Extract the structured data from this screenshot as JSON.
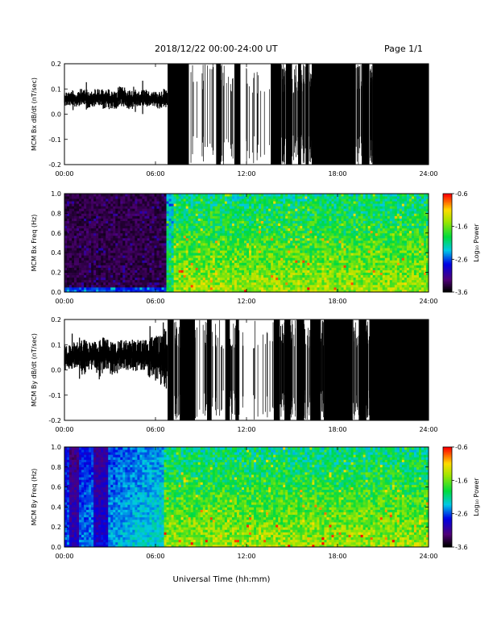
{
  "header": {
    "title": "2018/12/22  00:00-24:00 UT",
    "page": "Page 1/1"
  },
  "x_axis": {
    "label": "Universal Time (hh:mm)",
    "ticks": [
      "00:00",
      "06:00",
      "12:00",
      "18:00",
      "24:00"
    ],
    "range": [
      0,
      24
    ]
  },
  "chart_data": [
    {
      "type": "line",
      "ylabel": "MCM Bx dB/dt (nT/sec)",
      "yticks": [
        "0.2",
        "0.1",
        "0.0",
        "-0.1",
        "-0.2"
      ],
      "ylim": [
        -0.2,
        0.2
      ],
      "x": [
        0,
        0.5,
        1,
        1.5,
        2,
        2.5,
        3,
        3.5,
        4,
        4.5,
        5,
        5.5,
        6,
        6.5,
        6.8,
        7.5,
        8.5,
        9.5,
        10.5,
        11.5,
        12.5,
        13.5,
        14.5,
        15.5,
        16.5,
        17.5,
        18.5,
        19.5,
        20.5,
        21.5,
        22.5,
        23.5,
        24
      ],
      "y_min": [
        0.03,
        0.03,
        0.03,
        0.02,
        0.03,
        0.02,
        0.02,
        0.03,
        0.02,
        0.03,
        0.03,
        0.03,
        0.02,
        0.03,
        -0.2,
        -0.2,
        -0.2,
        -0.2,
        -0.2,
        -0.2,
        -0.2,
        -0.2,
        -0.2,
        -0.2,
        -0.2,
        -0.2,
        -0.2,
        -0.2,
        -0.2,
        -0.2,
        -0.2,
        -0.2,
        -0.2
      ],
      "y_max": [
        0.09,
        0.09,
        0.1,
        0.09,
        0.1,
        0.1,
        0.09,
        0.11,
        0.1,
        0.09,
        0.1,
        0.09,
        0.09,
        0.1,
        0.2,
        0.2,
        0.2,
        0.2,
        0.2,
        0.2,
        0.2,
        0.2,
        0.2,
        0.2,
        0.2,
        0.2,
        0.2,
        0.2,
        0.2,
        0.2,
        0.2,
        0.2,
        0.2
      ]
    },
    {
      "type": "heatmap",
      "ylabel": "MCM Bx Freq (Hz)",
      "yticks": [
        "1.0",
        "0.8",
        "0.6",
        "0.4",
        "0.2",
        "0.0"
      ],
      "ylim": [
        0,
        1.0
      ],
      "colorbar": {
        "label": "Log₁₀ Power",
        "ticks": [
          "-0.6",
          "-1.6",
          "-2.6",
          "-3.6"
        ],
        "range": [
          -3.6,
          -0.6
        ]
      },
      "onset_hour": 6.7
    },
    {
      "type": "line",
      "ylabel": "MCM By dB/dt (nT/sec)",
      "yticks": [
        "0.2",
        "0.1",
        "0.0",
        "-0.1",
        "-0.2"
      ],
      "ylim": [
        -0.2,
        0.2
      ],
      "x": [
        0,
        0.5,
        1,
        1.5,
        2,
        2.5,
        3,
        3.5,
        4,
        4.5,
        5,
        5.5,
        6,
        6.5,
        6.8,
        7.5,
        8.5,
        9.5,
        10.5,
        11.5,
        12.5,
        13.5,
        14.5,
        15.5,
        16.5,
        17.5,
        18.5,
        19.5,
        20.5,
        21.5,
        22.5,
        23.5,
        24
      ],
      "y_min": [
        0.0,
        0.0,
        -0.02,
        0.0,
        -0.02,
        0.0,
        -0.02,
        0.0,
        0.0,
        -0.01,
        0.0,
        -0.03,
        -0.06,
        -0.1,
        -0.2,
        -0.2,
        -0.2,
        -0.2,
        -0.2,
        -0.2,
        -0.2,
        -0.2,
        -0.2,
        -0.2,
        -0.2,
        -0.2,
        -0.2,
        -0.2,
        -0.2,
        -0.2,
        -0.2,
        -0.2,
        -0.2
      ],
      "y_max": [
        0.1,
        0.11,
        0.12,
        0.11,
        0.12,
        0.13,
        0.12,
        0.12,
        0.13,
        0.12,
        0.12,
        0.13,
        0.14,
        0.2,
        0.2,
        0.2,
        0.2,
        0.2,
        0.2,
        0.2,
        0.2,
        0.2,
        0.2,
        0.2,
        0.2,
        0.2,
        0.2,
        0.2,
        0.2,
        0.2,
        0.2,
        0.2,
        0.2
      ]
    },
    {
      "type": "heatmap",
      "ylabel": "MCM By Freq (Hz)",
      "yticks": [
        "1.0",
        "0.8",
        "0.6",
        "0.4",
        "0.2",
        "0.0"
      ],
      "ylim": [
        0,
        1.0
      ],
      "colorbar": {
        "label": "Log₁₀ Power",
        "ticks": [
          "-0.6",
          "-1.6",
          "-2.6",
          "-3.6"
        ],
        "range": [
          -3.6,
          -0.6
        ]
      }
    }
  ]
}
